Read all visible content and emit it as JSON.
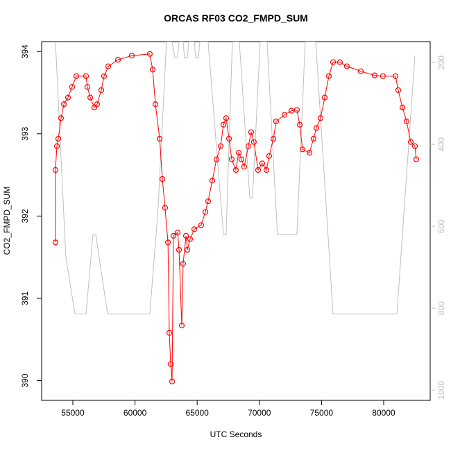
{
  "chart_data": {
    "type": "scatter",
    "title": "ORCAS RF03 CO2_FMPD_SUM",
    "x_label": "UTC Seconds",
    "y_label": "CO2_FMPD_SUM",
    "xlim": [
      52490,
      83740
    ],
    "xticks": [
      55000,
      60000,
      65000,
      70000,
      75000,
      80000
    ],
    "ylim": [
      389.76,
      394.12
    ],
    "yticks": [
      390,
      391,
      392,
      393,
      394
    ],
    "y2lim": [
      1025,
      149
    ],
    "y2ticks": [
      200,
      400,
      600,
      800,
      1000
    ],
    "series": [
      {
        "color": "#ff0000",
        "x": [
          53600,
          53600,
          53720,
          53830,
          54050,
          54280,
          54610,
          54940,
          55280,
          56060,
          56170,
          56400,
          56730,
          56950,
          57290,
          57510,
          57850,
          58630,
          59740,
          61190,
          61420,
          61640,
          61980,
          62200,
          62420,
          62650,
          62760,
          62870,
          62980,
          63090,
          63430,
          63540,
          63760,
          63870,
          64100,
          64210,
          64430,
          64770,
          65320,
          65660,
          65880,
          66220,
          66550,
          66890,
          67110,
          67330,
          67560,
          67780,
          68110,
          68340,
          68560,
          68780,
          69120,
          69340,
          69560,
          69900,
          70230,
          70570,
          70790,
          71130,
          71350,
          72020,
          72580,
          73020,
          73250,
          73470,
          74030,
          74360,
          74590,
          74920,
          75260,
          75590,
          75930,
          76480,
          77040,
          78160,
          79270,
          79940,
          80950,
          81170,
          81510,
          81840,
          82180,
          82510,
          82620
        ],
        "values": [
          391.68,
          392.56,
          392.85,
          392.94,
          393.19,
          393.36,
          393.44,
          393.57,
          393.7,
          393.7,
          393.57,
          393.44,
          393.32,
          393.36,
          393.53,
          393.7,
          393.82,
          393.9,
          393.95,
          393.97,
          393.78,
          393.36,
          392.94,
          392.45,
          392.1,
          391.68,
          390.58,
          390.2,
          389.99,
          391.76,
          391.8,
          391.59,
          390.67,
          391.42,
          391.76,
          391.59,
          391.72,
          391.84,
          391.89,
          392.05,
          392.18,
          392.43,
          392.69,
          392.85,
          393.11,
          393.19,
          392.94,
          392.69,
          392.56,
          392.77,
          392.69,
          392.6,
          392.85,
          393.02,
          392.9,
          392.56,
          392.64,
          392.56,
          392.73,
          392.94,
          393.15,
          393.23,
          393.28,
          393.29,
          393.11,
          392.81,
          392.77,
          392.94,
          393.07,
          393.19,
          393.44,
          393.7,
          393.87,
          393.87,
          393.82,
          393.76,
          393.71,
          393.7,
          393.7,
          393.53,
          393.32,
          393.15,
          392.9,
          392.85,
          392.69
        ]
      },
      {
        "color": "#bebebe",
        "axis": "y2",
        "x": [
          53600,
          54440,
          55170,
          56060,
          56620,
          56840,
          57790,
          61190,
          61860,
          62530,
          62980,
          63200,
          63430,
          63540,
          63870,
          63980,
          64210,
          64320,
          64770,
          64880,
          65100,
          65210,
          65880,
          67110,
          67330,
          67830,
          68390,
          69230,
          69450,
          70070,
          70620,
          71460,
          73020,
          73690,
          74530,
          75930,
          81060,
          82510
        ],
        "values": [
          149,
          675,
          814,
          814,
          620,
          620,
          814,
          814,
          556,
          149,
          149,
          188,
          188,
          149,
          149,
          188,
          188,
          149,
          149,
          188,
          188,
          149,
          149,
          620,
          620,
          149,
          149,
          531,
          531,
          149,
          149,
          620,
          620,
          149,
          149,
          814,
          814,
          183
        ]
      }
    ]
  }
}
